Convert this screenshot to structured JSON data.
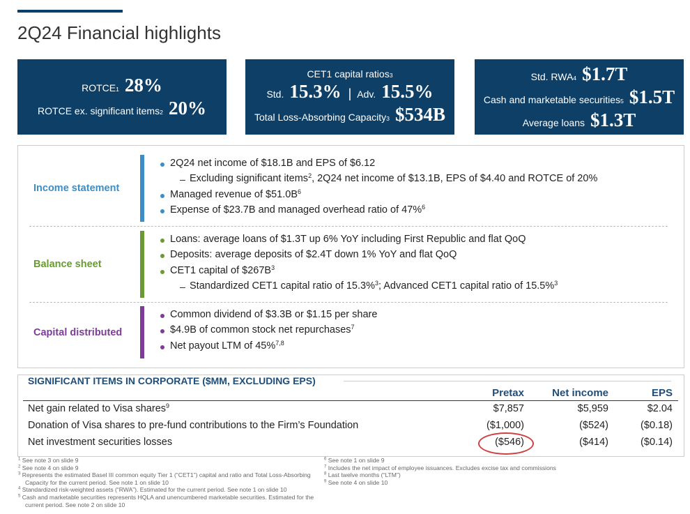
{
  "header": {
    "title": "2Q24 Financial highlights"
  },
  "kpi_boxes": [
    {
      "lines": [
        [
          {
            "t": "ROTCE"
          },
          {
            "sup": "1"
          },
          {
            "big": "28%"
          }
        ],
        [
          {
            "t": "ROTCE ex. significant items"
          },
          {
            "sup": "2"
          },
          {
            "big": "20%"
          }
        ]
      ]
    },
    {
      "lines": [
        [
          {
            "t": "CET1 capital ratios"
          },
          {
            "sup": "3"
          }
        ],
        [
          {
            "t": "Std."
          },
          {
            "big": "15.3%"
          },
          {
            "sep": "|"
          },
          {
            "t": "Adv."
          },
          {
            "big": "15.5%"
          }
        ],
        [
          {
            "t": "Total Loss-Absorbing Capacity"
          },
          {
            "sup": "3"
          },
          {
            "big": "$534B"
          }
        ]
      ]
    },
    {
      "lines": [
        [
          {
            "t": "Std. RWA"
          },
          {
            "sup": "4"
          },
          {
            "big": "$1.7T"
          }
        ],
        [
          {
            "t": "Cash and marketable securities"
          },
          {
            "sup": "5"
          },
          {
            "big": "$1.5T"
          }
        ],
        [
          {
            "t": "Average loans"
          },
          {
            "big": "$1.3T"
          }
        ]
      ]
    }
  ],
  "sections": [
    {
      "label": "Income statement",
      "color": "#3b8ec8",
      "bullets": [
        {
          "level": 1,
          "parts": [
            {
              "t": "2Q24 net income of $18.1B and EPS of $6.12"
            }
          ]
        },
        {
          "level": 2,
          "parts": [
            {
              "t": "Excluding significant items"
            },
            {
              "sup": "2"
            },
            {
              "t": ", 2Q24 net income of $13.1B, EPS of $4.40 and ROTCE of 20%"
            }
          ]
        },
        {
          "level": 1,
          "parts": [
            {
              "t": "Managed revenue of $51.0B"
            },
            {
              "sup": "6"
            }
          ]
        },
        {
          "level": 1,
          "parts": [
            {
              "t": "Expense of $23.7B and managed overhead ratio of 47%"
            },
            {
              "sup": "6"
            }
          ]
        }
      ]
    },
    {
      "label": "Balance sheet",
      "color": "#6a9a34",
      "bullets": [
        {
          "level": 1,
          "parts": [
            {
              "t": "Loans: average loans of $1.3T up 6% YoY including First Republic and flat QoQ"
            }
          ]
        },
        {
          "level": 1,
          "parts": [
            {
              "t": "Deposits: average deposits of $2.4T down 1% YoY and flat QoQ"
            }
          ]
        },
        {
          "level": 1,
          "parts": [
            {
              "t": "CET1 capital of $267B"
            },
            {
              "sup": "3"
            }
          ]
        },
        {
          "level": 2,
          "parts": [
            {
              "t": "Standardized CET1 capital ratio of 15.3%"
            },
            {
              "sup": "3"
            },
            {
              "t": "; Advanced CET1 capital ratio of 15.5%"
            },
            {
              "sup": "3"
            }
          ]
        }
      ]
    },
    {
      "label": "Capital distributed",
      "color": "#7d3c98",
      "bullets": [
        {
          "level": 1,
          "parts": [
            {
              "t": "Common dividend of $3.3B or $1.15 per share"
            }
          ]
        },
        {
          "level": 1,
          "parts": [
            {
              "t": "$4.9B of common stock net repurchases"
            },
            {
              "sup": "7"
            }
          ]
        },
        {
          "level": 1,
          "parts": [
            {
              "t": "Net payout LTM of 45%"
            },
            {
              "sup": "7,8"
            }
          ]
        }
      ]
    }
  ],
  "table": {
    "title": "SIGNIFICANT ITEMS IN CORPORATE ($MM, EXCLUDING EPS)",
    "columns": [
      "Pretax",
      "Net income",
      "EPS"
    ],
    "rows": [
      {
        "label": [
          {
            "t": "Net gain related to Visa shares"
          },
          {
            "sup": "9"
          }
        ],
        "cells": [
          "$7,857",
          "$5,959",
          "$2.04"
        ]
      },
      {
        "label": [
          {
            "t": "Donation of Visa shares to pre-fund contributions to the Firm’s Foundation"
          }
        ],
        "cells": [
          "($1,000)",
          "($524)",
          "($0.18)"
        ]
      },
      {
        "label": [
          {
            "t": "Net investment securities losses"
          }
        ],
        "cells": [
          "($546)",
          "($414)",
          "($0.14)"
        ]
      }
    ]
  },
  "footnotes": [
    [
      {
        "n": "1",
        "text": "See note 3 on slide 9"
      },
      {
        "n": "2",
        "text": "See note 4 on slide 9"
      },
      {
        "n": "3",
        "text": "Represents the estimated Basel III common equity Tier 1 (“CET1”) capital and ratio and Total Loss-Absorbing Capacity for the current period. See note 1 on slide 10"
      },
      {
        "n": "4",
        "text": "Standardized risk-weighted assets (“RWA”). Estimated for the current period. See note 1 on slide 10"
      },
      {
        "n": "5",
        "text": "Cash and marketable securities represents HQLA and unencumbered marketable securities. Estimated for the current period. See note 2 on slide 10"
      }
    ],
    [
      {
        "n": "6",
        "text": "See note 1 on slide 9"
      },
      {
        "n": "7",
        "text": "Includes the net impact of employee issuances. Excludes excise tax and commissions"
      },
      {
        "n": "8",
        "text": "Last twelve months (“LTM”)"
      },
      {
        "n": "9",
        "text": "See note 4 on slide 10"
      }
    ]
  ]
}
